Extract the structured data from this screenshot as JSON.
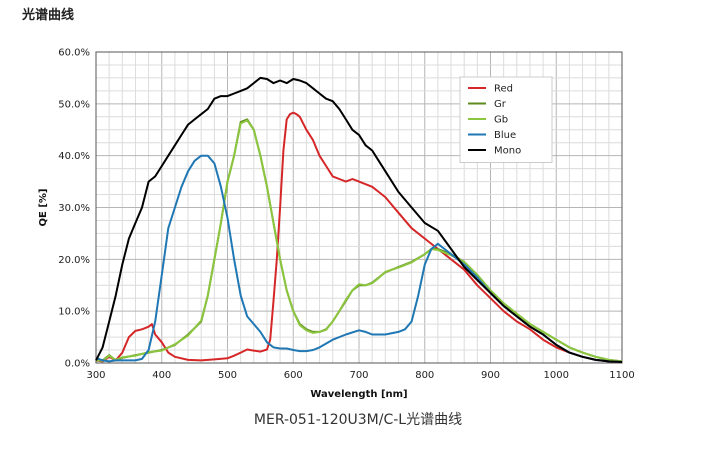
{
  "page": {
    "heading": "光谱曲线",
    "caption": "MER-051-120U3M/C-L光谱曲线"
  },
  "chart_data": {
    "type": "line",
    "title": "",
    "xlabel": "Wavelength [nm]",
    "ylabel": "QE [%]",
    "xlim": [
      300,
      1100
    ],
    "ylim": [
      0,
      60
    ],
    "x_ticks": [
      300,
      400,
      500,
      600,
      700,
      800,
      900,
      1000,
      1100
    ],
    "y_ticks": [
      0,
      10,
      20,
      30,
      40,
      50,
      60
    ],
    "y_tick_labels": [
      "0.0%",
      "10.0%",
      "20.0%",
      "30.0%",
      "40.0%",
      "50.0%",
      "60.0%"
    ],
    "grid": true,
    "legend_position": "top-right",
    "series": [
      {
        "name": "Red",
        "color": "#d62728",
        "x": [
          300,
          310,
          320,
          330,
          340,
          350,
          360,
          370,
          380,
          385,
          390,
          400,
          410,
          420,
          440,
          460,
          480,
          500,
          510,
          520,
          530,
          540,
          550,
          560,
          565,
          570,
          575,
          580,
          585,
          590,
          595,
          600,
          605,
          610,
          620,
          630,
          640,
          650,
          660,
          670,
          680,
          690,
          700,
          710,
          720,
          730,
          740,
          760,
          780,
          800,
          820,
          840,
          860,
          880,
          900,
          920,
          940,
          960,
          980,
          1000,
          1020,
          1040,
          1060,
          1080,
          1100
        ],
        "y": [
          0.5,
          0.3,
          1.2,
          0.5,
          2.0,
          5.0,
          6.2,
          6.5,
          7.0,
          7.5,
          5.5,
          4.0,
          2.0,
          1.2,
          0.6,
          0.5,
          0.7,
          0.9,
          1.4,
          2.0,
          2.6,
          2.4,
          2.2,
          2.6,
          4.5,
          12,
          20,
          30,
          41,
          47,
          48,
          48.3,
          48,
          47.5,
          45,
          43,
          40,
          38,
          36,
          35.5,
          35,
          35.5,
          35,
          34.5,
          34,
          33,
          32,
          29,
          26,
          24,
          22,
          20,
          18,
          15,
          12.5,
          10,
          8,
          6.5,
          4.5,
          3,
          2,
          1.2,
          0.6,
          0.3,
          0.2
        ]
      },
      {
        "name": "Gr",
        "color": "#5e8a1e",
        "x": [
          300,
          310,
          320,
          330,
          340,
          360,
          380,
          400,
          420,
          440,
          460,
          470,
          480,
          490,
          500,
          510,
          520,
          530,
          540,
          550,
          560,
          570,
          580,
          590,
          600,
          610,
          620,
          630,
          640,
          650,
          660,
          670,
          680,
          690,
          700,
          710,
          720,
          730,
          740,
          760,
          780,
          800,
          810,
          820,
          840,
          860,
          880,
          900,
          920,
          940,
          960,
          980,
          1000,
          1020,
          1040,
          1060,
          1080,
          1100
        ],
        "y": [
          0.5,
          0.5,
          1.5,
          0.5,
          1.0,
          1.5,
          2.0,
          2.5,
          3.5,
          5.5,
          8.0,
          13,
          20,
          27,
          35,
          40,
          46.5,
          47,
          45,
          40,
          34,
          27,
          20,
          14,
          10,
          7.5,
          6.5,
          6,
          6,
          6.5,
          8,
          10,
          12,
          14,
          15,
          15,
          15.5,
          16.5,
          17.5,
          18.5,
          19.5,
          21,
          22,
          22,
          21,
          19.5,
          17,
          14,
          11.5,
          9.5,
          7.5,
          6,
          4.5,
          3,
          2,
          1.2,
          0.6,
          0.3
        ]
      },
      {
        "name": "Gb",
        "color": "#8cc63f",
        "x": [
          300,
          310,
          320,
          330,
          340,
          360,
          380,
          400,
          420,
          440,
          460,
          470,
          480,
          490,
          500,
          510,
          520,
          530,
          540,
          550,
          560,
          570,
          580,
          590,
          600,
          610,
          620,
          630,
          640,
          650,
          660,
          670,
          680,
          690,
          700,
          710,
          720,
          730,
          740,
          760,
          780,
          800,
          810,
          820,
          840,
          860,
          880,
          900,
          920,
          940,
          960,
          980,
          1000,
          1020,
          1040,
          1060,
          1080,
          1100
        ],
        "y": [
          0.6,
          0.4,
          1.4,
          0.6,
          1.1,
          1.4,
          2.1,
          2.4,
          3.6,
          5.3,
          8.2,
          13,
          20,
          27,
          35,
          40,
          46.2,
          46.8,
          45,
          40,
          34,
          27,
          20,
          14,
          10,
          7.3,
          6.3,
          5.8,
          6,
          6.4,
          8,
          10,
          12.2,
          14,
          15.2,
          15,
          15.4,
          16.4,
          17.6,
          18.4,
          19.4,
          21,
          22,
          21.8,
          20.8,
          19.5,
          17,
          14,
          11.5,
          9.5,
          7.5,
          6,
          4.5,
          3,
          2,
          1.2,
          0.6,
          0.3
        ]
      },
      {
        "name": "Blue",
        "color": "#1f77b4",
        "x": [
          300,
          310,
          320,
          330,
          340,
          360,
          370,
          380,
          390,
          400,
          410,
          420,
          430,
          440,
          450,
          460,
          470,
          480,
          490,
          500,
          510,
          520,
          530,
          540,
          550,
          560,
          570,
          580,
          590,
          600,
          610,
          620,
          630,
          640,
          660,
          680,
          700,
          710,
          720,
          740,
          760,
          770,
          780,
          790,
          800,
          810,
          820,
          830,
          840,
          860,
          880,
          900,
          920,
          940,
          960,
          980,
          1000,
          1020,
          1040,
          1060,
          1080,
          1100
        ],
        "y": [
          1.0,
          0.5,
          0.3,
          0.5,
          0.5,
          0.5,
          0.8,
          2.5,
          8,
          17,
          26,
          30,
          34,
          37,
          39,
          40,
          40,
          38.5,
          34,
          28,
          20,
          13,
          9,
          7.5,
          6,
          4,
          3,
          2.8,
          2.8,
          2.5,
          2.3,
          2.3,
          2.5,
          3,
          4.5,
          5.5,
          6.3,
          6,
          5.5,
          5.5,
          6,
          6.5,
          8,
          13,
          19,
          22,
          23,
          22,
          21,
          19,
          16.5,
          13.5,
          11,
          9,
          7,
          5.5,
          3.5,
          2,
          1.2,
          0.6,
          0.3,
          0.2
        ]
      },
      {
        "name": "Mono",
        "color": "#000000",
        "x": [
          300,
          310,
          320,
          330,
          340,
          350,
          360,
          370,
          380,
          390,
          400,
          410,
          420,
          430,
          440,
          450,
          460,
          470,
          480,
          490,
          500,
          510,
          520,
          530,
          540,
          550,
          560,
          570,
          580,
          590,
          600,
          610,
          620,
          630,
          640,
          650,
          660,
          670,
          680,
          690,
          700,
          710,
          720,
          730,
          740,
          760,
          780,
          800,
          820,
          840,
          860,
          880,
          900,
          920,
          940,
          960,
          980,
          1000,
          1020,
          1040,
          1060,
          1080,
          1100
        ],
        "y": [
          0.5,
          3,
          8,
          13,
          19,
          24,
          27,
          30,
          35,
          36,
          38,
          40,
          42,
          44,
          46,
          47,
          48,
          49,
          51,
          51.5,
          51.5,
          52,
          52.5,
          53,
          54,
          55,
          54.8,
          54,
          54.5,
          54,
          54.8,
          54.5,
          54,
          53,
          52,
          51,
          50.5,
          49,
          47,
          45,
          44,
          42,
          41,
          39,
          37,
          33,
          30,
          27,
          25.5,
          22,
          18.5,
          16,
          13.5,
          11,
          9,
          7,
          5.5,
          3.5,
          2,
          1.2,
          0.6,
          0.3,
          0.2
        ]
      }
    ]
  }
}
